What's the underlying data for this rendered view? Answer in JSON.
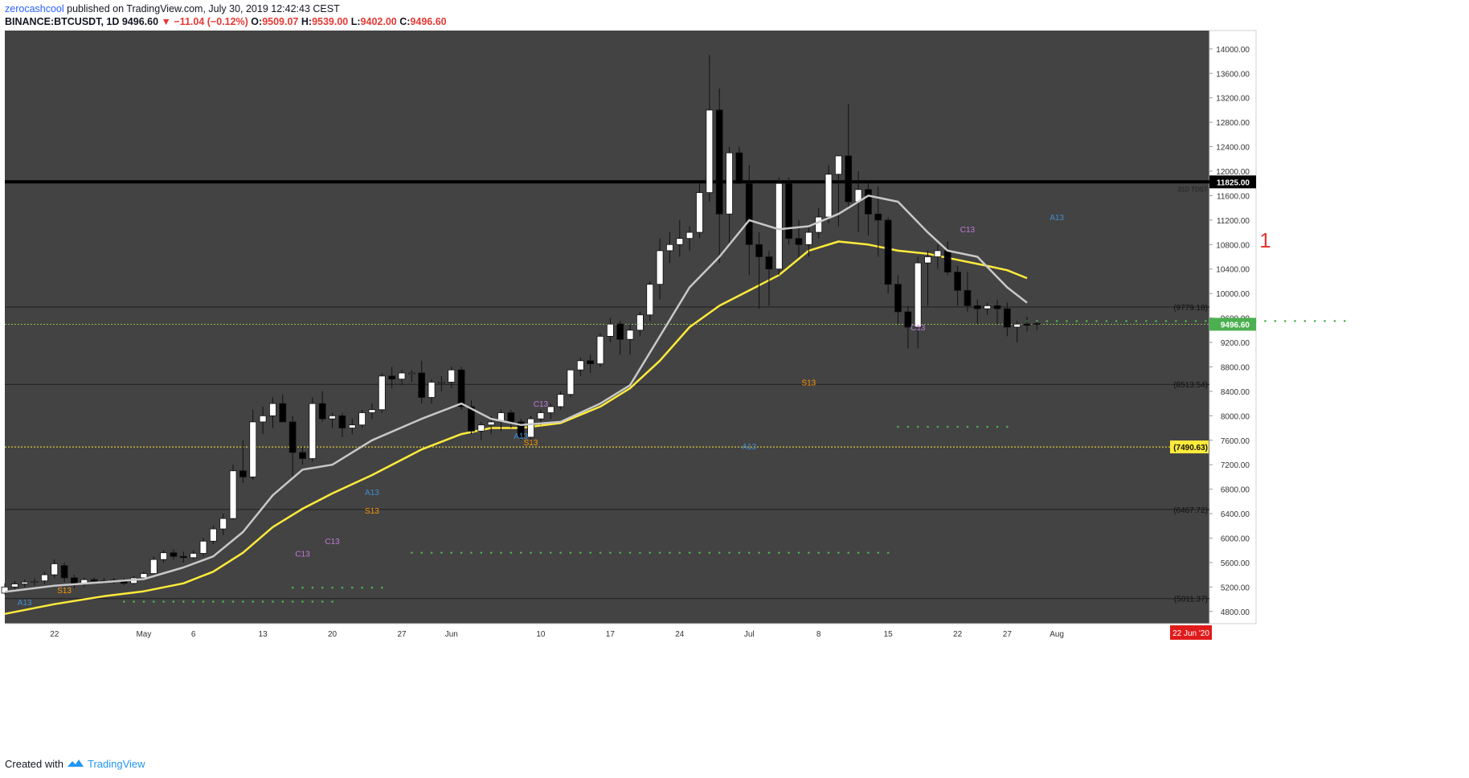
{
  "header": {
    "author": "zerocashcool",
    "published_text": "published on TradingView.com, July 30, 2019 12:42:43 CEST",
    "symbol": "BINANCE:BTCUSDT, 1D",
    "last": "9496.60",
    "change": "▼ −11.04 (−0.12%)",
    "ohlc": [
      {
        "k": "O:",
        "v": "9509.07"
      },
      {
        "k": "H:",
        "v": "9539.00"
      },
      {
        "k": "L:",
        "v": "9402.00"
      },
      {
        "k": "C:",
        "v": "9496.60"
      }
    ]
  },
  "footer": {
    "created_with": "Created with",
    "brand": "TradingView"
  },
  "colors": {
    "background": "#434343",
    "up_candle": "#ffffff",
    "down_candle": "#000000",
    "ema_fast": "#c8c8c8",
    "ema_slow": "#ffeb3b",
    "support_dots": "#4caf50",
    "resistance": "#000000"
  },
  "chart_data": {
    "type": "candlestick",
    "symbol": "BINANCE:BTCUSDT",
    "interval": "1D",
    "ylim": [
      4600,
      14300
    ],
    "y_ticks": [
      4800,
      5200,
      5600,
      6000,
      6400,
      6800,
      7200,
      7600,
      8000,
      8400,
      8800,
      9200,
      9600,
      10000,
      10400,
      10800,
      11200,
      11600,
      12000,
      12400,
      12800,
      13200,
      13600,
      14000
    ],
    "x_ticks": [
      {
        "label": "22",
        "day": "2019-04-22"
      },
      {
        "label": "May",
        "day": "2019-05-01"
      },
      {
        "label": "6",
        "day": "2019-05-06"
      },
      {
        "label": "13",
        "day": "2019-05-13"
      },
      {
        "label": "20",
        "day": "2019-05-20"
      },
      {
        "label": "27",
        "day": "2019-05-27"
      },
      {
        "label": "Jun",
        "day": "2019-06-01"
      },
      {
        "label": "10",
        "day": "2019-06-10"
      },
      {
        "label": "17",
        "day": "2019-06-17"
      },
      {
        "label": "24",
        "day": "2019-06-24"
      },
      {
        "label": "Jul",
        "day": "2019-07-01"
      },
      {
        "label": "8",
        "day": "2019-07-08"
      },
      {
        "label": "15",
        "day": "2019-07-15"
      },
      {
        "label": "22",
        "day": "2019-07-22"
      },
      {
        "label": "27",
        "day": "2019-07-27"
      },
      {
        "label": "Aug",
        "day": "2019-08-01"
      }
    ],
    "date_badge": "22 Jun '20",
    "candles_ohlc": [
      [
        5100,
        5260,
        5080,
        5200
      ],
      [
        5200,
        5300,
        5150,
        5250
      ],
      [
        5250,
        5320,
        5200,
        5280
      ],
      [
        5280,
        5340,
        5220,
        5290
      ],
      [
        5300,
        5450,
        5250,
        5400
      ],
      [
        5400,
        5650,
        5350,
        5580
      ],
      [
        5550,
        5600,
        5280,
        5350
      ],
      [
        5350,
        5400,
        5180,
        5250
      ],
      [
        5250,
        5350,
        5200,
        5320
      ],
      [
        5320,
        5360,
        5250,
        5300
      ],
      [
        5300,
        5350,
        5250,
        5290
      ],
      [
        5290,
        5350,
        5250,
        5310
      ],
      [
        5310,
        5340,
        5230,
        5260
      ],
      [
        5260,
        5380,
        5240,
        5350
      ],
      [
        5350,
        5450,
        5320,
        5420
      ],
      [
        5420,
        5700,
        5400,
        5650
      ],
      [
        5650,
        5800,
        5600,
        5760
      ],
      [
        5760,
        5820,
        5650,
        5700
      ],
      [
        5700,
        5780,
        5600,
        5680
      ],
      [
        5680,
        5800,
        5650,
        5750
      ],
      [
        5750,
        6000,
        5700,
        5950
      ],
      [
        5950,
        6200,
        5900,
        6150
      ],
      [
        6150,
        6400,
        6050,
        6320
      ],
      [
        6320,
        7200,
        6300,
        7100
      ],
      [
        7100,
        7600,
        6900,
        7000
      ],
      [
        7000,
        8100,
        6950,
        7900
      ],
      [
        7900,
        8150,
        7700,
        8000
      ],
      [
        8000,
        8300,
        7800,
        8200
      ],
      [
        8200,
        8350,
        7900,
        7900
      ],
      [
        7900,
        8000,
        7000,
        7400
      ],
      [
        7400,
        7500,
        7200,
        7300
      ],
      [
        7300,
        8300,
        7250,
        8200
      ],
      [
        8200,
        8400,
        7900,
        7950
      ],
      [
        7950,
        8050,
        7800,
        8000
      ],
      [
        8000,
        8050,
        7650,
        7800
      ],
      [
        7800,
        7950,
        7700,
        7850
      ],
      [
        7850,
        8100,
        7800,
        8050
      ],
      [
        8050,
        8200,
        7950,
        8100
      ],
      [
        8100,
        8700,
        8050,
        8650
      ],
      [
        8650,
        8800,
        8450,
        8600
      ],
      [
        8600,
        8750,
        8500,
        8700
      ],
      [
        8700,
        8750,
        8550,
        8700
      ],
      [
        8700,
        8900,
        8200,
        8300
      ],
      [
        8300,
        8600,
        8200,
        8550
      ],
      [
        8550,
        8650,
        8400,
        8550
      ],
      [
        8550,
        8800,
        8450,
        8750
      ],
      [
        8750,
        8800,
        8100,
        8150
      ],
      [
        8150,
        8250,
        7700,
        7750
      ],
      [
        7750,
        7900,
        7600,
        7850
      ],
      [
        7850,
        8000,
        7700,
        7900
      ],
      [
        7900,
        8100,
        7750,
        8050
      ],
      [
        8050,
        8100,
        7800,
        7900
      ],
      [
        7900,
        7950,
        7600,
        7650
      ],
      [
        7650,
        8000,
        7550,
        7950
      ],
      [
        7950,
        8100,
        7850,
        8050
      ],
      [
        8050,
        8200,
        7950,
        8150
      ],
      [
        8150,
        8400,
        8100,
        8350
      ],
      [
        8350,
        8750,
        8300,
        8750
      ],
      [
        8750,
        8950,
        8650,
        8900
      ],
      [
        8900,
        9000,
        8700,
        8850
      ],
      [
        8850,
        9350,
        8800,
        9300
      ],
      [
        9300,
        9600,
        9200,
        9500
      ],
      [
        9500,
        9550,
        9000,
        9250
      ],
      [
        9250,
        9500,
        9000,
        9400
      ],
      [
        9400,
        9700,
        9300,
        9650
      ],
      [
        9650,
        10200,
        9550,
        10150
      ],
      [
        10150,
        10900,
        9900,
        10700
      ],
      [
        10700,
        11000,
        10500,
        10800
      ],
      [
        10800,
        11200,
        10600,
        10900
      ],
      [
        10900,
        11100,
        10700,
        11000
      ],
      [
        11000,
        11800,
        10900,
        11650
      ],
      [
        11650,
        13900,
        11500,
        13000
      ],
      [
        13000,
        13350,
        10500,
        11300
      ],
      [
        11300,
        12400,
        10800,
        12300
      ],
      [
        12300,
        12400,
        11800,
        11800
      ],
      [
        11800,
        12100,
        10300,
        10800
      ],
      [
        10800,
        11000,
        9750,
        10600
      ],
      [
        10600,
        10700,
        9800,
        10400
      ],
      [
        10400,
        11900,
        10300,
        11800
      ],
      [
        11800,
        11900,
        10800,
        10900
      ],
      [
        10900,
        11200,
        10600,
        10800
      ],
      [
        10800,
        11100,
        10600,
        11000
      ],
      [
        11000,
        11400,
        10900,
        11250
      ],
      [
        11250,
        12100,
        11150,
        11950
      ],
      [
        11950,
        12250,
        11100,
        12250
      ],
      [
        12250,
        13100,
        11400,
        11500
      ],
      [
        11500,
        12000,
        11000,
        11700
      ],
      [
        11700,
        11800,
        10950,
        11300
      ],
      [
        11300,
        11750,
        10600,
        11200
      ],
      [
        11200,
        11250,
        10000,
        10150
      ],
      [
        10150,
        10300,
        9500,
        9700
      ],
      [
        9700,
        9800,
        9100,
        9450
      ],
      [
        9450,
        10600,
        9100,
        10500
      ],
      [
        10500,
        10700,
        9800,
        10600
      ],
      [
        10600,
        10800,
        10400,
        10700
      ],
      [
        10700,
        10850,
        10300,
        10350
      ],
      [
        10350,
        10450,
        9800,
        10050
      ],
      [
        10050,
        10350,
        9700,
        9800
      ],
      [
        9800,
        9900,
        9500,
        9750
      ],
      [
        9750,
        9850,
        9650,
        9800
      ],
      [
        9800,
        9900,
        9500,
        9750
      ],
      [
        9750,
        9850,
        9300,
        9450
      ],
      [
        9450,
        9550,
        9200,
        9500
      ],
      [
        9500,
        9620,
        9380,
        9480
      ],
      [
        9509.07,
        9539,
        9402,
        9496.6
      ]
    ],
    "ema_fast_points": [
      [
        0,
        5120
      ],
      [
        5,
        5220
      ],
      [
        10,
        5280
      ],
      [
        14,
        5330
      ],
      [
        18,
        5520
      ],
      [
        21,
        5700
      ],
      [
        24,
        6100
      ],
      [
        27,
        6700
      ],
      [
        30,
        7120
      ],
      [
        33,
        7200
      ],
      [
        37,
        7600
      ],
      [
        42,
        7950
      ],
      [
        46,
        8200
      ],
      [
        49,
        7950
      ],
      [
        52,
        7850
      ],
      [
        56,
        7900
      ],
      [
        60,
        8200
      ],
      [
        63,
        8500
      ],
      [
        66,
        9300
      ],
      [
        69,
        10100
      ],
      [
        72,
        10600
      ],
      [
        75,
        11200
      ],
      [
        78,
        11050
      ],
      [
        81,
        11100
      ],
      [
        84,
        11300
      ],
      [
        87,
        11600
      ],
      [
        90,
        11500
      ],
      [
        93,
        11000
      ],
      [
        95,
        10700
      ],
      [
        98,
        10600
      ],
      [
        101,
        10100
      ],
      [
        103,
        9850
      ]
    ],
    "ema_slow_points": [
      [
        0,
        4760
      ],
      [
        5,
        4920
      ],
      [
        10,
        5050
      ],
      [
        14,
        5130
      ],
      [
        18,
        5260
      ],
      [
        21,
        5450
      ],
      [
        24,
        5760
      ],
      [
        27,
        6180
      ],
      [
        30,
        6480
      ],
      [
        33,
        6730
      ],
      [
        37,
        7030
      ],
      [
        42,
        7450
      ],
      [
        46,
        7700
      ],
      [
        49,
        7800
      ],
      [
        52,
        7800
      ],
      [
        56,
        7880
      ],
      [
        60,
        8150
      ],
      [
        63,
        8450
      ],
      [
        66,
        8900
      ],
      [
        69,
        9450
      ],
      [
        72,
        9800
      ],
      [
        75,
        10050
      ],
      [
        78,
        10300
      ],
      [
        81,
        10700
      ],
      [
        84,
        10850
      ],
      [
        87,
        10800
      ],
      [
        90,
        10700
      ],
      [
        93,
        10650
      ],
      [
        96,
        10550
      ],
      [
        99,
        10450
      ],
      [
        101,
        10380
      ],
      [
        103,
        10250
      ]
    ],
    "horizontal_levels": [
      {
        "price": 11825,
        "label": "11825.00",
        "note": "31D TDST",
        "style": "resistance"
      },
      {
        "price": 9779.18,
        "label": "(9779.18)"
      },
      {
        "price": 8513.54,
        "label": "(8513.54)"
      },
      {
        "price": 7490.63,
        "label": "(7490.63)",
        "highlight": true
      },
      {
        "price": 6467.72,
        "label": "(6467.72)"
      },
      {
        "price": 5011.37,
        "label": "(5011.37)"
      }
    ],
    "last_price_label": "9496.60",
    "support_dot_levels": [
      {
        "from": 12,
        "to": 33,
        "price": 4960
      },
      {
        "from": 29,
        "to": 38,
        "price": 5190
      },
      {
        "from": 41,
        "to": 89,
        "price": 5760
      },
      {
        "from": 90,
        "to": 101,
        "price": 7820
      },
      {
        "from": 103,
        "to": 135,
        "price": 9550
      }
    ],
    "annotations": [
      {
        "text": "A13",
        "i": 2,
        "price": 4900,
        "color": "#3f8fd0"
      },
      {
        "text": "S13",
        "i": 6,
        "price": 5100,
        "color": "#ff9800"
      },
      {
        "text": "C13",
        "i": 30,
        "price": 5700,
        "color": "#c07ad8"
      },
      {
        "text": "C13",
        "i": 33,
        "price": 5900,
        "color": "#c07ad8"
      },
      {
        "text": "A13",
        "i": 37,
        "price": 6700,
        "color": "#3f8fd0"
      },
      {
        "text": "S13",
        "i": 37,
        "price": 6400,
        "color": "#ff9800"
      },
      {
        "text": "A13",
        "i": 52,
        "price": 7620,
        "color": "#3f8fd0"
      },
      {
        "text": "S13",
        "i": 53,
        "price": 7520,
        "color": "#ff9800"
      },
      {
        "text": "C13",
        "i": 54,
        "price": 8150,
        "color": "#c07ad8"
      },
      {
        "text": "A13",
        "i": 75,
        "price": 7450,
        "color": "#3f8fd0"
      },
      {
        "text": "S13",
        "i": 81,
        "price": 8500,
        "color": "#ff9800"
      },
      {
        "text": "C13",
        "i": 92,
        "price": 9400,
        "color": "#c07ad8"
      },
      {
        "text": "C13",
        "i": 97,
        "price": 11000,
        "color": "#c07ad8"
      },
      {
        "text": "A13",
        "i": 106,
        "price": 11200,
        "color": "#3f8fd0"
      },
      {
        "text": "1",
        "i": 127,
        "price": 10750,
        "color": "#e53935",
        "big": true
      }
    ]
  }
}
